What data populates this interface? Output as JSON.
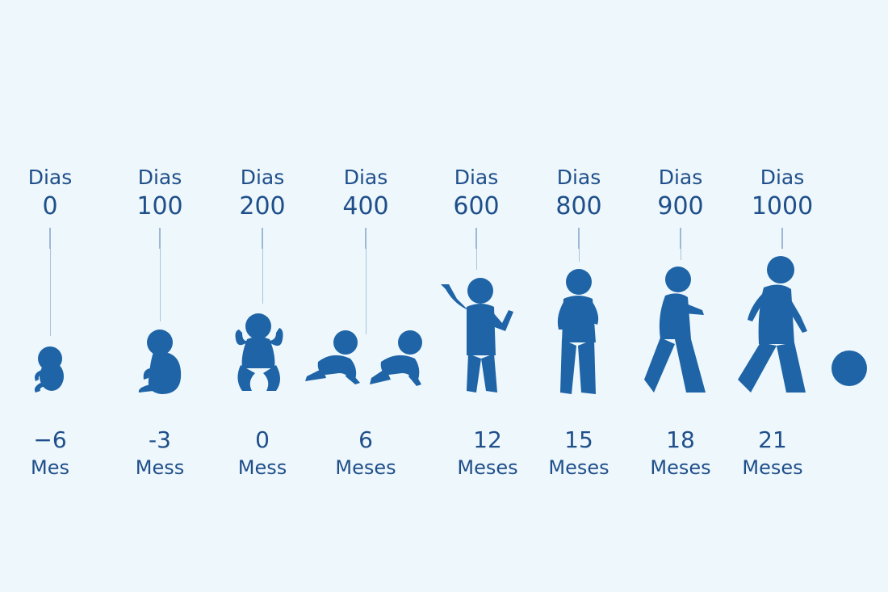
{
  "stages": [
    {
      "days_label": "Dias",
      "days": "0",
      "months": "−6",
      "months_label": "Mes",
      "figure": "fetus-icon"
    },
    {
      "days_label": "Dias",
      "days": "100",
      "months": "-3",
      "months_label": "Mess",
      "figure": "fetus-late-icon"
    },
    {
      "days_label": "Dias",
      "days": "200",
      "months": "0",
      "months_label": "Mess",
      "figure": "sitting-baby-icon"
    },
    {
      "days_label": "Dias",
      "days": "400",
      "months": "6",
      "months_label": "Meses",
      "figure": "crawling-baby-icon"
    },
    {
      "days_label": "Dias",
      "days": "600",
      "months": "12",
      "months_label": "Meses",
      "figure": "standing-toddler-icon"
    },
    {
      "days_label": "Dias",
      "days": "800",
      "months": "15",
      "months_label": "Meses",
      "figure": "standing-child-icon"
    },
    {
      "days_label": "Dias",
      "days": "900",
      "months": "18",
      "months_label": "Meses",
      "figure": "walking-child-icon"
    },
    {
      "days_label": "Dias",
      "days": "1000",
      "months": "21",
      "months_label": "Meses",
      "figure": "walking-child-large-icon"
    }
  ],
  "colors": {
    "figure": "#1e64a6",
    "text": "#1f4f8a",
    "background": "#eef7fc"
  }
}
